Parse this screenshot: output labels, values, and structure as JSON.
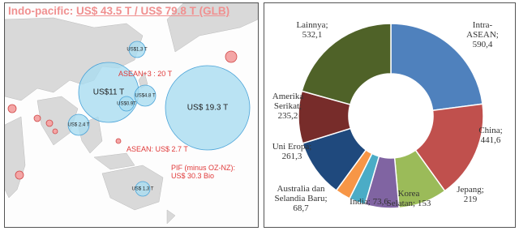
{
  "map": {
    "title": {
      "lead": "Indo-pacific:",
      "value": "US$ 43.5 T / US$ 79.8 T (GLB)"
    },
    "annotations": [
      "ASEAN+3 : 20 T",
      "ASEAN: US$  2.7 T",
      "PIF (minus OZ-NZ): US$ 30.3 Bio"
    ],
    "bubbles": [
      "US$11 T",
      "US$ 19.3 T",
      "US$4.8 T",
      "US$1,3 T",
      "US$ 2.4 T",
      "US$0.9T",
      "US$ 1,3 T"
    ]
  },
  "chart_data": {
    "type": "donut",
    "categories": [
      "Intra-ASEAN;",
      "China;",
      "Jepang;",
      "Korea Selatan;",
      "India;",
      "Australia dan Selandia Baru;",
      "Uni Eropa;",
      "Amerika Serikat;",
      "Lainnya;"
    ],
    "values": [
      590.4,
      441.6,
      219,
      153,
      73.6,
      68.7,
      261.3,
      235.2,
      532.1
    ],
    "value_labels": [
      "590,4",
      "441,6",
      "219",
      "153",
      "73,6",
      "68,7",
      "261,3",
      "235,2",
      "532,1"
    ],
    "colors": [
      "#4f81bd",
      "#c0504d",
      "#9bbb59",
      "#8064a2",
      "#4bacc6",
      "#f79646",
      "#1f497d",
      "#772c2a",
      "#4f6228"
    ]
  }
}
